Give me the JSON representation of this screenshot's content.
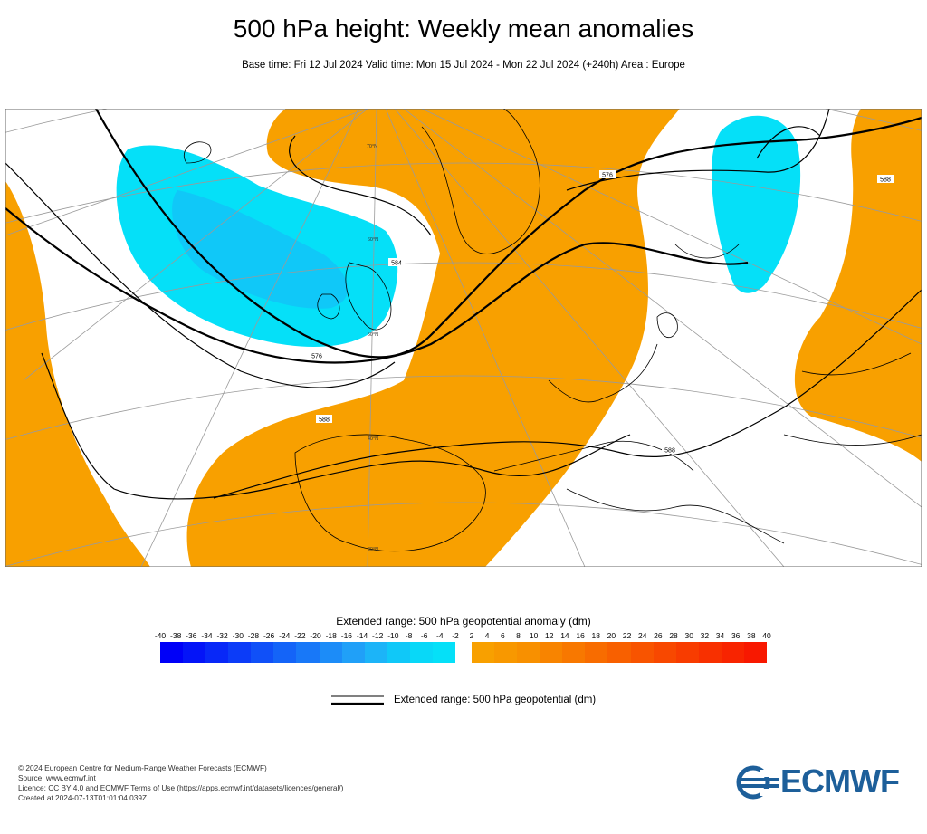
{
  "title": "500 hPa height: Weekly mean anomalies",
  "subtitle": "Base time: Fri 12 Jul 2024 Valid time: Mon 15 Jul 2024 - Mon 22 Jul 2024 (+240h) Area : Europe",
  "map": {
    "contour_labels": [
      "576",
      "576",
      "588",
      "584",
      "588",
      "588",
      "576"
    ],
    "lat_labels": [
      "70°N",
      "60°N",
      "50°N",
      "40°N",
      "30°N"
    ],
    "colors": {
      "positive_anomaly": "#f8a000",
      "negative_anomaly": "#05e0f8",
      "land_outline": "#000000",
      "graticule": "#9a9a9a"
    }
  },
  "legend": {
    "title": "Extended range: 500 hPa geopotential anomaly (dm)",
    "negative_ticks": [
      "-40",
      "-38",
      "-36",
      "-34",
      "-32",
      "-30",
      "-28",
      "-26",
      "-24",
      "-22",
      "-20",
      "-18",
      "-16",
      "-14",
      "-12",
      "-10",
      "-8",
      "-6",
      "-4",
      "-2"
    ],
    "positive_ticks": [
      "2",
      "4",
      "6",
      "8",
      "10",
      "12",
      "14",
      "16",
      "18",
      "20",
      "22",
      "24",
      "26",
      "28",
      "30",
      "32",
      "34",
      "36",
      "38",
      "40"
    ],
    "negative_colors": [
      "#0000f8",
      "#0414f8",
      "#0828f8",
      "#0c3cf8",
      "#1050f8",
      "#1464f8",
      "#1878f8",
      "#1c8cf8",
      "#20a0f8",
      "#1cb4f8",
      "#10c8f8",
      "#08d8f8",
      "#05e0f8"
    ],
    "positive_colors": [
      "#f8a000",
      "#f89800",
      "#f89000",
      "#f88400",
      "#f87800",
      "#f86c00",
      "#f86000",
      "#f85400",
      "#f84800",
      "#f83c00",
      "#f83000",
      "#f82400",
      "#f81800"
    ],
    "contour_label": "Extended range: 500 hPa geopotential (dm)"
  },
  "footer": {
    "line1": "© 2024 European Centre for Medium-Range Weather Forecasts (ECMWF)",
    "line2": "Source: www.ecmwf.int",
    "line3": "Licence: CC BY 4.0 and ECMWF Terms of Use (https://apps.ecmwf.int/datasets/licences/general/)",
    "line4": "Created at 2024-07-13T01:01:04.039Z"
  },
  "logo": {
    "text": "ECMWF"
  }
}
